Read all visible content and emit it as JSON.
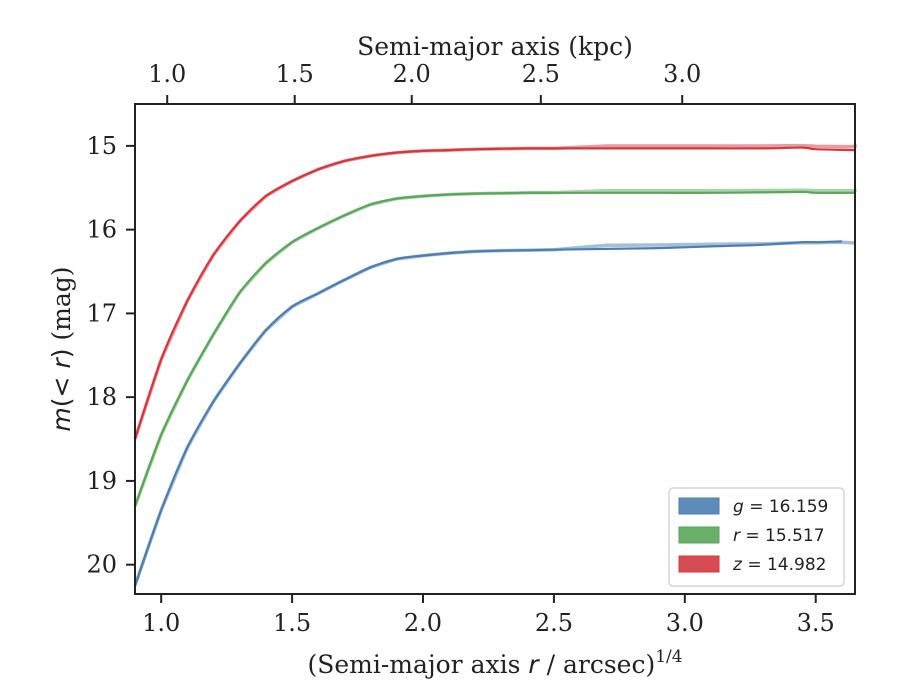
{
  "chart_data": {
    "type": "line",
    "title": "",
    "xlabel": "(Semi-major axis r / arcsec)",
    "xlabel_main": "(Semi-major axis ",
    "xlabel_var": "r",
    "xlabel_tail": " / arcsec)",
    "xlabel_exp": "1/4",
    "ylabel": "m(< r) (mag)",
    "ylabel_var": "m",
    "ylabel_mid": "(< ",
    "ylabel_r": "r",
    "ylabel_tail": ") (mag)",
    "top_xlabel": "Semi-major axis (kpc)",
    "xlim": [
      0.9,
      3.65
    ],
    "ylim": [
      20.35,
      14.5
    ],
    "x_ticks": [
      1.0,
      1.5,
      2.0,
      2.5,
      3.0,
      3.5
    ],
    "x_tick_labels": [
      "1.0",
      "1.5",
      "2.0",
      "2.5",
      "3.0",
      "3.5"
    ],
    "y_ticks": [
      15,
      16,
      17,
      18,
      19,
      20
    ],
    "y_tick_labels": [
      "15",
      "16",
      "17",
      "18",
      "19",
      "20"
    ],
    "top_x_ticks": [
      1.0,
      1.5,
      2.0,
      2.5,
      3.0
    ],
    "top_x_tick_labels": [
      "1.0",
      "1.5",
      "2.0",
      "2.5",
      "3.0"
    ],
    "top_tick_positions_in_bottom_units": [
      1.023,
      1.51,
      1.957,
      2.45,
      2.99
    ],
    "legend_position": "bottom-right",
    "legend": [
      {
        "label": "g = 16.159",
        "var": "g",
        "value": "16.159",
        "color": "#4c7fb0"
      },
      {
        "label": "r = 15.517",
        "var": "r",
        "value": "15.517",
        "color": "#5aa65a"
      },
      {
        "label": "z = 14.982",
        "var": "z",
        "value": "14.982",
        "color": "#d3383f"
      }
    ],
    "series": [
      {
        "name": "g",
        "color": "#4c7fb0",
        "asymptote": 16.159,
        "x": [
          0.9,
          1.0,
          1.1,
          1.2,
          1.3,
          1.4,
          1.5,
          1.6,
          1.7,
          1.8,
          1.9,
          2.0,
          2.1,
          2.2,
          2.3,
          2.4,
          2.5,
          2.7,
          2.9,
          3.1,
          3.3,
          3.45,
          3.5,
          3.6
        ],
        "values": [
          20.25,
          19.35,
          18.6,
          18.05,
          17.6,
          17.2,
          16.92,
          16.76,
          16.6,
          16.45,
          16.35,
          16.31,
          16.28,
          16.26,
          16.25,
          16.245,
          16.24,
          16.23,
          16.22,
          16.2,
          16.18,
          16.15,
          16.15,
          16.14
        ]
      },
      {
        "name": "r",
        "color": "#5aa65a",
        "asymptote": 15.517,
        "x": [
          0.9,
          1.0,
          1.1,
          1.2,
          1.3,
          1.4,
          1.5,
          1.6,
          1.7,
          1.8,
          1.9,
          2.0,
          2.1,
          2.2,
          2.3,
          2.4,
          2.5,
          2.7,
          2.9,
          3.1,
          3.3,
          3.45,
          3.5,
          3.65
        ],
        "values": [
          19.3,
          18.45,
          17.8,
          17.25,
          16.75,
          16.4,
          16.15,
          15.98,
          15.83,
          15.7,
          15.63,
          15.6,
          15.58,
          15.57,
          15.565,
          15.56,
          15.56,
          15.56,
          15.56,
          15.56,
          15.555,
          15.55,
          15.56,
          15.56
        ]
      },
      {
        "name": "z",
        "color": "#d3383f",
        "asymptote": 14.982,
        "x": [
          0.9,
          1.0,
          1.1,
          1.2,
          1.3,
          1.4,
          1.5,
          1.6,
          1.7,
          1.8,
          1.9,
          2.0,
          2.1,
          2.2,
          2.3,
          2.4,
          2.5,
          2.7,
          2.9,
          3.1,
          3.3,
          3.45,
          3.5,
          3.65
        ],
        "values": [
          18.5,
          17.55,
          16.85,
          16.3,
          15.9,
          15.6,
          15.42,
          15.28,
          15.18,
          15.12,
          15.08,
          15.06,
          15.05,
          15.04,
          15.035,
          15.03,
          15.03,
          15.03,
          15.03,
          15.03,
          15.03,
          15.02,
          15.04,
          15.05
        ]
      }
    ]
  }
}
